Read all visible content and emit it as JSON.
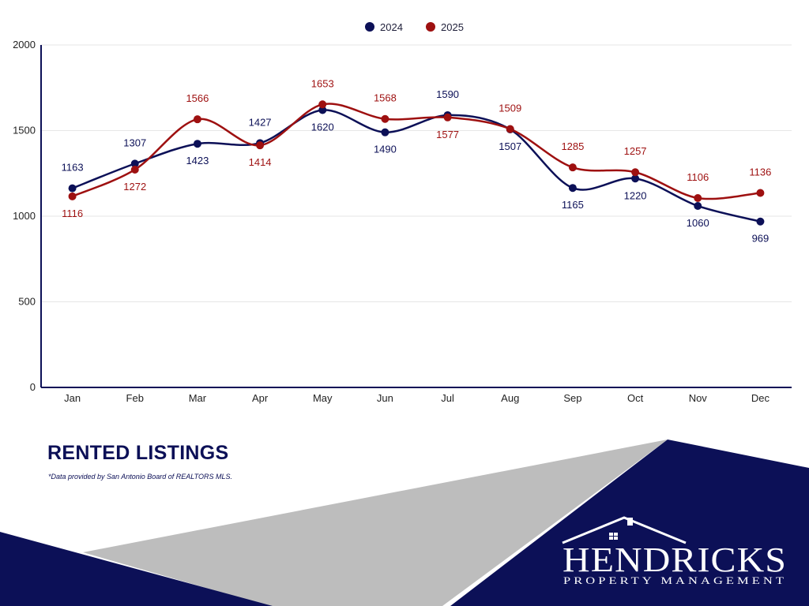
{
  "title": "RENTED LISTINGS",
  "footnote": "*Data provided by San Antonio Board of REALTORS MLS.",
  "brand": {
    "name": "HENDRICKS",
    "tagline": "PROPERTY MANAGEMENT"
  },
  "colors": {
    "series_2024": "#0c1057",
    "series_2025": "#9e1010",
    "navy": "#0c1057",
    "grey": "#bdbdbd"
  },
  "chart_data": {
    "type": "line",
    "categories": [
      "Jan",
      "Feb",
      "Mar",
      "Apr",
      "May",
      "Jun",
      "Jul",
      "Aug",
      "Sep",
      "Oct",
      "Nov",
      "Dec"
    ],
    "series": [
      {
        "name": "2024",
        "values": [
          1163,
          1307,
          1423,
          1427,
          1620,
          1490,
          1590,
          1507,
          1165,
          1220,
          1060,
          969
        ]
      },
      {
        "name": "2025",
        "values": [
          1116,
          1272,
          1566,
          1414,
          1653,
          1568,
          1577,
          1509,
          1285,
          1257,
          1106,
          1136
        ]
      }
    ],
    "ylim": [
      0,
      2000
    ],
    "yticks": [
      0,
      500,
      1000,
      1500,
      2000
    ],
    "grid": true,
    "legend": "top-center",
    "smooth": true
  }
}
